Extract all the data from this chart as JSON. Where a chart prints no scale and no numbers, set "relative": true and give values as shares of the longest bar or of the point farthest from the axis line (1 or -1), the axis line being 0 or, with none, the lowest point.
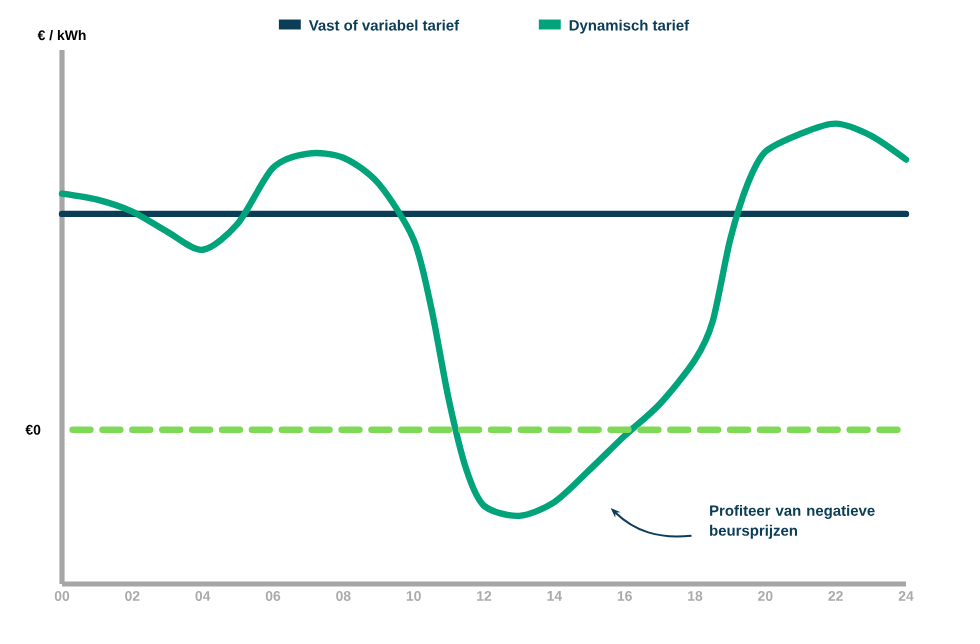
{
  "chart_data": {
    "type": "line",
    "relative": true,
    "xlim": [
      0,
      24
    ],
    "xticks": [
      {
        "value": 0,
        "label": "00"
      },
      {
        "value": 2,
        "label": "02"
      },
      {
        "value": 4,
        "label": "04"
      },
      {
        "value": 6,
        "label": "06"
      },
      {
        "value": 8,
        "label": "08"
      },
      10,
      12,
      14,
      16,
      18,
      20,
      22,
      24
    ],
    "legend": "top",
    "grid": false,
    "marker": "none",
    "series": [
      {
        "name": "Vast of variabel tarief",
        "color": "#0b3d56",
        "x": [
          0,
          24
        ],
        "values": [
          0.804,
          0.804
        ]
      },
      {
        "name": "Dynamisch tarief",
        "color": "#00a37a",
        "x": [
          0,
          1,
          2,
          3,
          4,
          5,
          6,
          7,
          8,
          9,
          10,
          10.5,
          11,
          11.5,
          12,
          13,
          14,
          15,
          16,
          17,
          18,
          18.5,
          19,
          19.5,
          20,
          21,
          22,
          23,
          24
        ],
        "values": [
          0.848,
          0.835,
          0.809,
          0.765,
          0.726,
          0.783,
          0.904,
          0.935,
          0.926,
          0.87,
          0.748,
          0.6,
          0.4,
          0.248,
          0.17,
          0.148,
          0.178,
          0.248,
          0.322,
          0.391,
          0.487,
          0.57,
          0.748,
          0.87,
          0.939,
          0.978,
          1,
          0.974,
          0.922
        ]
      }
    ],
    "ref_lines": [
      {
        "axis": "y",
        "value": 0.335,
        "label": "€0",
        "color": "#7ed957",
        "line_style": "dashed"
      }
    ],
    "annotations": [
      "€ / kWh",
      "Profiteer van negatieve beursprijzen"
    ]
  }
}
